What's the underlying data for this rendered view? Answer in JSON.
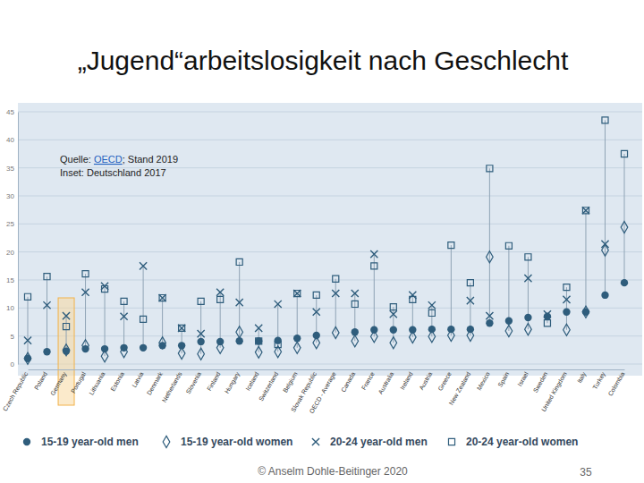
{
  "chart_data": {
    "type": "dot",
    "title": "„Jugend“arbeitslosigkeit nach Geschlecht",
    "source": {
      "prefix": "Quelle: ",
      "link": "OECD",
      "suffix": "; Stand 2019"
    },
    "annotation": "Inset: Deutschland 2017",
    "categories": [
      "Czech Republic",
      "Poland",
      "Germany",
      "Portugal",
      "Lithuania",
      "Estonia",
      "Latvia",
      "Denmark",
      "Netherlands",
      "Slovenia",
      "Finland",
      "Hungary",
      "Iceland",
      "Switzerland",
      "Belgium",
      "Slovak Republic",
      "OECD - Average",
      "Canada",
      "France",
      "Australia",
      "Ireland",
      "Austria",
      "Greece",
      "New Zealand",
      "Mexico",
      "Spain",
      "Israel",
      "Sweden",
      "United Kingdom",
      "Italy",
      "Turkey",
      "Colombia"
    ],
    "series": [
      {
        "name": "15-19 year-old men",
        "color": "#2f5d7c",
        "marker": "circle",
        "values": [
          1.0,
          2.2,
          2.3,
          2.7,
          2.7,
          2.9,
          2.9,
          3.3,
          3.3,
          4.0,
          4.0,
          4.1,
          4.1,
          4.2,
          4.6,
          5.1,
          null,
          5.7,
          6.1,
          6.1,
          6.1,
          6.2,
          6.2,
          6.2,
          7.3,
          7.7,
          8.3,
          8.5,
          9.3,
          9.3,
          12.3,
          14.5
        ]
      },
      {
        "name": "15-19 year-old women",
        "color": "#2f5d7c",
        "marker": "diamond-open",
        "values": [
          1.0,
          null,
          2.5,
          3.3,
          1.4,
          2.2,
          null,
          3.8,
          1.9,
          1.8,
          2.9,
          5.7,
          2.1,
          2.2,
          2.9,
          3.8,
          5.6,
          4.1,
          4.9,
          3.8,
          4.8,
          4.9,
          5.1,
          5.1,
          19.1,
          5.9,
          6.2,
          null,
          6.1,
          9.3,
          20.3,
          24.4
        ]
      },
      {
        "name": "20-24 year-old men",
        "color": "#2f5d7c",
        "marker": "x",
        "values": [
          4.2,
          10.5,
          8.6,
          12.8,
          13.9,
          8.5,
          17.5,
          11.8,
          6.4,
          5.4,
          12.8,
          11.0,
          6.4,
          10.7,
          12.6,
          9.3,
          12.6,
          12.6,
          19.6,
          8.9,
          12.3,
          10.5,
          null,
          11.3,
          8.6,
          null,
          15.3,
          8.9,
          11.5,
          27.4,
          21.4,
          null
        ]
      },
      {
        "name": "20-24 year-old women",
        "color": "#2f5d7c",
        "marker": "square-open",
        "values": [
          12.0,
          15.6,
          6.7,
          16.1,
          13.4,
          11.2,
          8.0,
          11.8,
          6.4,
          11.2,
          11.5,
          18.2,
          4.1,
          3.5,
          12.6,
          12.3,
          15.2,
          10.7,
          17.5,
          10.2,
          11.5,
          9.1,
          21.2,
          14.5,
          34.9,
          21.1,
          19.1,
          7.3,
          13.7,
          27.4,
          43.5,
          37.5
        ]
      }
    ],
    "ylim": [
      0,
      45
    ],
    "yticks": [
      0,
      5,
      10,
      15,
      20,
      25,
      30,
      35,
      40,
      45
    ],
    "grid": true,
    "legend": "bottom"
  },
  "footer": "© Anselm Dohle-Beitinger 2020",
  "page_number": "35"
}
